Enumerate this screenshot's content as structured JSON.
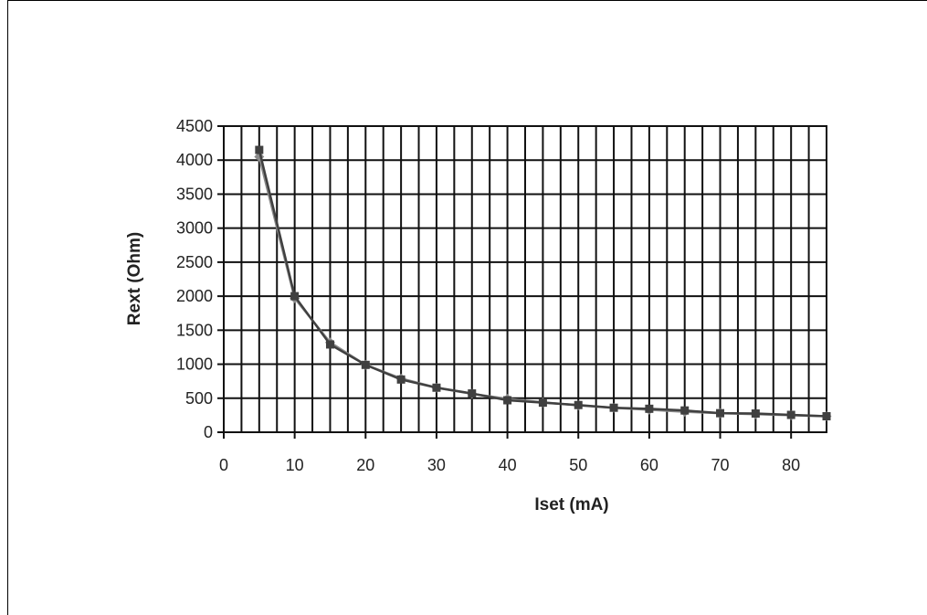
{
  "chart_data": {
    "type": "line",
    "title": "",
    "xlabel": "Iset (mA)",
    "ylabel": "Rext (Ohm)",
    "xlim": [
      0,
      85
    ],
    "ylim": [
      0,
      4500
    ],
    "x_ticks": [
      0,
      10,
      20,
      30,
      40,
      50,
      60,
      70,
      80
    ],
    "y_ticks": [
      0,
      500,
      1000,
      1500,
      2000,
      2500,
      3000,
      3500,
      4000,
      4500
    ],
    "grid": true,
    "legend": "none",
    "series": [
      {
        "marker": "diamond",
        "color": "#8a8a8a",
        "x": [
          5,
          10,
          15,
          20,
          25,
          30,
          35,
          40,
          45,
          50,
          55,
          60,
          65,
          70,
          75,
          80,
          85
        ],
        "y": [
          4050,
          1970,
          1320,
          990,
          790,
          655,
          565,
          490,
          440,
          395,
          360,
          330,
          300,
          280,
          265,
          250,
          235
        ]
      },
      {
        "marker": "square",
        "color": "#404040",
        "x": [
          5,
          10,
          15,
          20,
          25,
          30,
          35,
          40,
          45,
          50,
          55,
          60,
          65,
          70,
          75,
          80,
          85
        ],
        "y": [
          4150,
          2000,
          1290,
          990,
          775,
          655,
          570,
          470,
          435,
          400,
          360,
          345,
          320,
          280,
          275,
          255,
          235
        ]
      }
    ]
  }
}
